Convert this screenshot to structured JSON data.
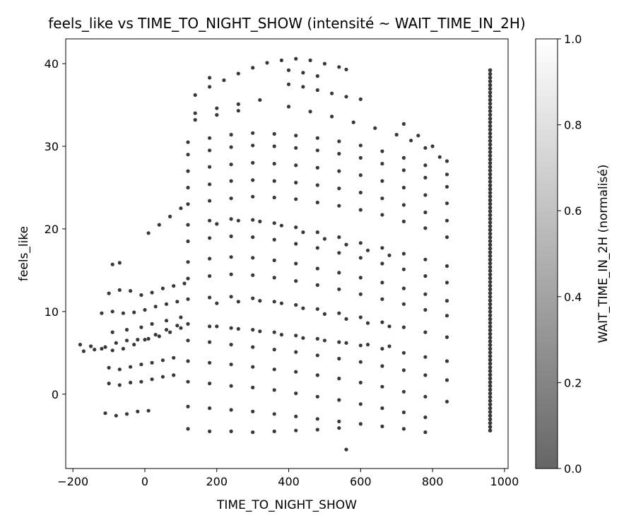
{
  "chart_data": {
    "type": "scatter",
    "title": "feels_like vs TIME_TO_NIGHT_SHOW (intensité ~ WAIT_TIME_IN_2H)",
    "xlabel": "TIME_TO_NIGHT_SHOW",
    "ylabel": "feels_like",
    "xlim": [
      -220,
      1010
    ],
    "ylim": [
      -9,
      43
    ],
    "xticks": [
      -200,
      0,
      200,
      400,
      600,
      800,
      1000
    ],
    "yticks": [
      0,
      10,
      20,
      30,
      40
    ],
    "grid": false,
    "legend": "none",
    "colorbar": {
      "label": "WAIT_TIME_IN_2H (normalisé)",
      "ticks": [
        "0.0",
        "0.2",
        "0.4",
        "0.6",
        "0.8",
        "1.0"
      ],
      "range": [
        0,
        1
      ],
      "colors": [
        "#666666",
        "#ffffff"
      ]
    },
    "point_color": "#222222",
    "series": [
      {
        "x": [
          -180,
          -150,
          -120,
          -90,
          -60,
          -30,
          0,
          30,
          60,
          90
        ],
        "y": [
          6.0,
          5.8,
          5.5,
          5.3,
          5.5,
          6.0,
          6.6,
          7.2,
          7.8,
          8.3
        ]
      },
      {
        "x": [
          -170,
          -140,
          -110,
          -80,
          -50,
          -20,
          10,
          40,
          70,
          100
        ],
        "y": [
          5.2,
          5.4,
          5.7,
          6.2,
          6.5,
          6.6,
          6.7,
          7.0,
          7.5,
          8.0
        ]
      },
      {
        "x": [
          -120,
          -90,
          -60,
          -30,
          0,
          30,
          60,
          90
        ],
        "y": [
          9.8,
          10.0,
          9.8,
          9.9,
          10.2,
          10.6,
          10.9,
          11.2
        ]
      },
      {
        "x": [
          -100,
          -70,
          -40,
          -10,
          20,
          50,
          80,
          110
        ],
        "y": [
          12.2,
          12.6,
          12.5,
          12.0,
          12.3,
          12.8,
          13.1,
          13.4
        ]
      },
      {
        "x": [
          -100,
          -70,
          -40,
          -10,
          20,
          50,
          80
        ],
        "y": [
          3.2,
          3.0,
          3.3,
          3.6,
          3.8,
          4.1,
          4.4
        ]
      },
      {
        "x": [
          -100,
          -70,
          -40,
          -10,
          20,
          50,
          80
        ],
        "y": [
          1.3,
          1.1,
          1.4,
          1.5,
          1.8,
          2.1,
          2.3
        ]
      },
      {
        "x": [
          -110,
          -80,
          -50,
          -20,
          10
        ],
        "y": [
          -2.3,
          -2.6,
          -2.4,
          -2.1,
          -2.0
        ]
      },
      {
        "x": [
          10,
          40,
          70,
          100
        ],
        "y": [
          19.5,
          20.5,
          21.5,
          22.5
        ]
      },
      {
        "x": [
          -90,
          -70
        ],
        "y": [
          15.7,
          15.9
        ]
      },
      {
        "x": [
          -90,
          -50,
          -10,
          20,
          60,
          100
        ],
        "y": [
          7.5,
          7.8,
          8.1,
          8.5,
          8.9,
          9.3
        ]
      },
      {
        "x": [
          120,
          180,
          240,
          300,
          360,
          420,
          480,
          540,
          600,
          660,
          720,
          780,
          840
        ],
        "y": [
          30.5,
          31.0,
          31.4,
          31.6,
          31.5,
          31.3,
          31.0,
          30.6,
          30.1,
          29.4,
          28.6,
          27.7,
          26.6
        ]
      },
      {
        "x": [
          120,
          180,
          240,
          300,
          360,
          420,
          480,
          540,
          600,
          660,
          720,
          780,
          840
        ],
        "y": [
          29.0,
          29.5,
          29.9,
          30.1,
          30.0,
          29.8,
          29.5,
          29.1,
          28.6,
          27.9,
          27.1,
          26.2,
          25.1
        ]
      },
      {
        "x": [
          120,
          180,
          240,
          300,
          360,
          420,
          480,
          540,
          600,
          660,
          720,
          780,
          840
        ],
        "y": [
          27.0,
          27.5,
          27.8,
          28.0,
          27.9,
          27.7,
          27.4,
          27.0,
          26.5,
          25.8,
          25.0,
          24.1,
          23.1
        ]
      },
      {
        "x": [
          120,
          180,
          240,
          300,
          360,
          420,
          480,
          540,
          600,
          660,
          720,
          780,
          840
        ],
        "y": [
          25.0,
          25.4,
          25.8,
          25.9,
          25.8,
          25.6,
          25.3,
          24.9,
          24.4,
          23.7,
          22.9,
          22.0,
          21.0
        ]
      },
      {
        "x": [
          120,
          180,
          240,
          300,
          360,
          420,
          480,
          540,
          600,
          660,
          720,
          780,
          840
        ],
        "y": [
          23.0,
          23.4,
          23.7,
          23.9,
          23.8,
          23.6,
          23.2,
          22.8,
          22.3,
          21.7,
          20.9,
          20.1,
          19.0
        ]
      },
      {
        "x": [
          120,
          180,
          240,
          300,
          360,
          420,
          480,
          540,
          600,
          660,
          720,
          780,
          840
        ],
        "y": [
          20.5,
          21.0,
          21.2,
          21.1,
          20.7,
          20.2,
          19.6,
          19.0,
          18.3,
          17.7,
          17.0,
          16.3,
          15.5
        ]
      },
      {
        "x": [
          120,
          180,
          240,
          300,
          360,
          420,
          480,
          540,
          600,
          660,
          720,
          780,
          840
        ],
        "y": [
          18.5,
          18.9,
          19.1,
          19.0,
          18.7,
          18.2,
          17.7,
          17.1,
          16.5,
          15.8,
          15.1,
          14.3,
          13.5
        ]
      },
      {
        "x": [
          120,
          180,
          240,
          300,
          360,
          420,
          480,
          540,
          600,
          660,
          720,
          780,
          840
        ],
        "y": [
          16.0,
          16.4,
          16.6,
          16.5,
          16.2,
          15.8,
          15.2,
          14.7,
          14.1,
          13.5,
          12.8,
          12.1,
          11.3
        ]
      },
      {
        "x": [
          120,
          180,
          240,
          300,
          360,
          420,
          480,
          540,
          600,
          660,
          720,
          780,
          840
        ],
        "y": [
          14.0,
          14.3,
          14.5,
          14.4,
          14.1,
          13.7,
          13.2,
          12.7,
          12.1,
          11.5,
          10.9,
          10.2,
          9.5
        ]
      },
      {
        "x": [
          120,
          180,
          240,
          300,
          360,
          420,
          480,
          540,
          600,
          660,
          720,
          780,
          840
        ],
        "y": [
          11.5,
          11.7,
          11.8,
          11.6,
          11.2,
          10.8,
          10.3,
          9.8,
          9.3,
          8.7,
          8.1,
          7.5,
          6.9
        ]
      },
      {
        "x": [
          120,
          180,
          240,
          300,
          360,
          420,
          480,
          540,
          600,
          660,
          720,
          780,
          840
        ],
        "y": [
          8.5,
          8.2,
          8.0,
          7.8,
          7.5,
          7.1,
          6.7,
          6.3,
          5.9,
          5.5,
          5.0,
          4.5,
          4.0
        ]
      },
      {
        "x": [
          120,
          180,
          240,
          300,
          360,
          420,
          480,
          540,
          600,
          660,
          720,
          780,
          840
        ],
        "y": [
          6.5,
          6.3,
          6.0,
          5.7,
          5.4,
          5.1,
          4.7,
          4.3,
          3.9,
          3.4,
          2.9,
          2.3,
          1.7
        ]
      },
      {
        "x": [
          120,
          180,
          240,
          300,
          360,
          420,
          480,
          540,
          600,
          660,
          720,
          780,
          840
        ],
        "y": [
          4.0,
          3.8,
          3.6,
          3.3,
          3.0,
          2.7,
          2.3,
          1.9,
          1.4,
          0.9,
          0.3,
          -0.3,
          -0.9
        ]
      },
      {
        "x": [
          120,
          180,
          240,
          300,
          360,
          420,
          480,
          540,
          600,
          660,
          720,
          780
        ],
        "y": [
          1.5,
          1.3,
          1.0,
          0.8,
          0.5,
          0.1,
          -0.3,
          -0.7,
          -1.2,
          -1.7,
          -2.2,
          -2.8
        ]
      },
      {
        "x": [
          120,
          180,
          240,
          300,
          360,
          420,
          480,
          540,
          600,
          660,
          720,
          780
        ],
        "y": [
          -1.5,
          -1.7,
          -1.9,
          -2.1,
          -2.4,
          -2.7,
          -3.0,
          -3.3,
          -3.6,
          -3.9,
          -4.2,
          -4.6
        ]
      },
      {
        "x": [
          120,
          180,
          240,
          300,
          360,
          420,
          480,
          540
        ],
        "y": [
          -4.2,
          -4.5,
          -4.5,
          -4.6,
          -4.5,
          -4.4,
          -4.3,
          -4.1
        ]
      },
      {
        "x": [
          140,
          200,
          260,
          320
        ],
        "y": [
          34.0,
          34.6,
          35.1,
          35.6
        ]
      },
      {
        "x": [
          140,
          200,
          260
        ],
        "y": [
          33.2,
          33.8,
          34.3
        ]
      },
      {
        "x": [
          140,
          180,
          220,
          260,
          300,
          340,
          380,
          420,
          460,
          500,
          540,
          560
        ],
        "y": [
          36.2,
          37.2,
          38.0,
          38.8,
          39.5,
          40.1,
          40.4,
          40.6,
          40.4,
          40.0,
          39.6,
          39.3
        ]
      },
      {
        "x": [
          180
        ],
        "y": [
          38.3
        ]
      },
      {
        "x": [
          400,
          440,
          480,
          520,
          560,
          600
        ],
        "y": [
          37.5,
          37.2,
          36.8,
          36.4,
          36.0,
          35.7
        ]
      },
      {
        "x": [
          400,
          440,
          480
        ],
        "y": [
          39.2,
          38.9,
          38.5
        ]
      },
      {
        "x": [
          400,
          460,
          520,
          580,
          640,
          700,
          740,
          780,
          820
        ],
        "y": [
          34.8,
          34.2,
          33.6,
          32.9,
          32.2,
          31.4,
          30.7,
          29.8,
          28.7
        ]
      },
      {
        "x": [
          720,
          760,
          800,
          840
        ],
        "y": [
          32.7,
          31.3,
          30.0,
          28.2
        ]
      },
      {
        "x": [
          200,
          260,
          320,
          380,
          440,
          500,
          560,
          620,
          680
        ],
        "y": [
          20.6,
          21.0,
          20.9,
          20.4,
          19.6,
          18.8,
          18.1,
          17.4,
          16.8
        ]
      },
      {
        "x": [
          200,
          260,
          320,
          380,
          440,
          500,
          560,
          620,
          680
        ],
        "y": [
          11.0,
          11.2,
          11.3,
          11.0,
          10.4,
          9.7,
          9.1,
          8.6,
          8.2
        ]
      },
      {
        "x": [
          200,
          260,
          320,
          380,
          440,
          500,
          560,
          620,
          680
        ],
        "y": [
          8.2,
          7.9,
          7.6,
          7.2,
          6.8,
          6.5,
          6.2,
          6.0,
          5.8
        ]
      },
      {
        "x": [
          560
        ],
        "y": [
          -6.7
        ]
      }
    ],
    "vertical_band": {
      "x": 960,
      "ymin": -4.4,
      "ymax": 39.2
    }
  }
}
